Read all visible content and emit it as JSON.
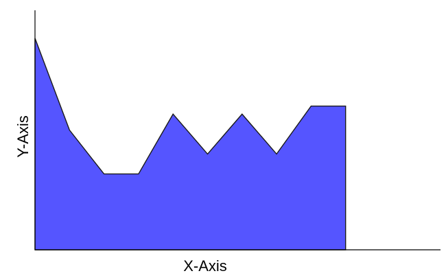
{
  "chart_data": {
    "type": "area",
    "xlabel": "X-Axis",
    "ylabel": "Y-Axis",
    "x": [
      0,
      1,
      2,
      3,
      4,
      5,
      6,
      7,
      8,
      9,
      10,
      11,
      12,
      13,
      14,
      15,
      16,
      17,
      18,
      19,
      20,
      21,
      22,
      23,
      24
    ],
    "series": [
      {
        "values": [
          5.3,
          3.0,
          1.9,
          1.9,
          3.4,
          2.4,
          3.4,
          2.4,
          3.6,
          3.6
        ],
        "x": [
          0,
          2,
          4,
          6,
          8,
          10,
          12,
          14,
          16,
          18
        ]
      }
    ],
    "xlim": [
      0,
      23.5
    ],
    "ylim": [
      0,
      6
    ],
    "grid": false,
    "color": "#5555ff"
  }
}
